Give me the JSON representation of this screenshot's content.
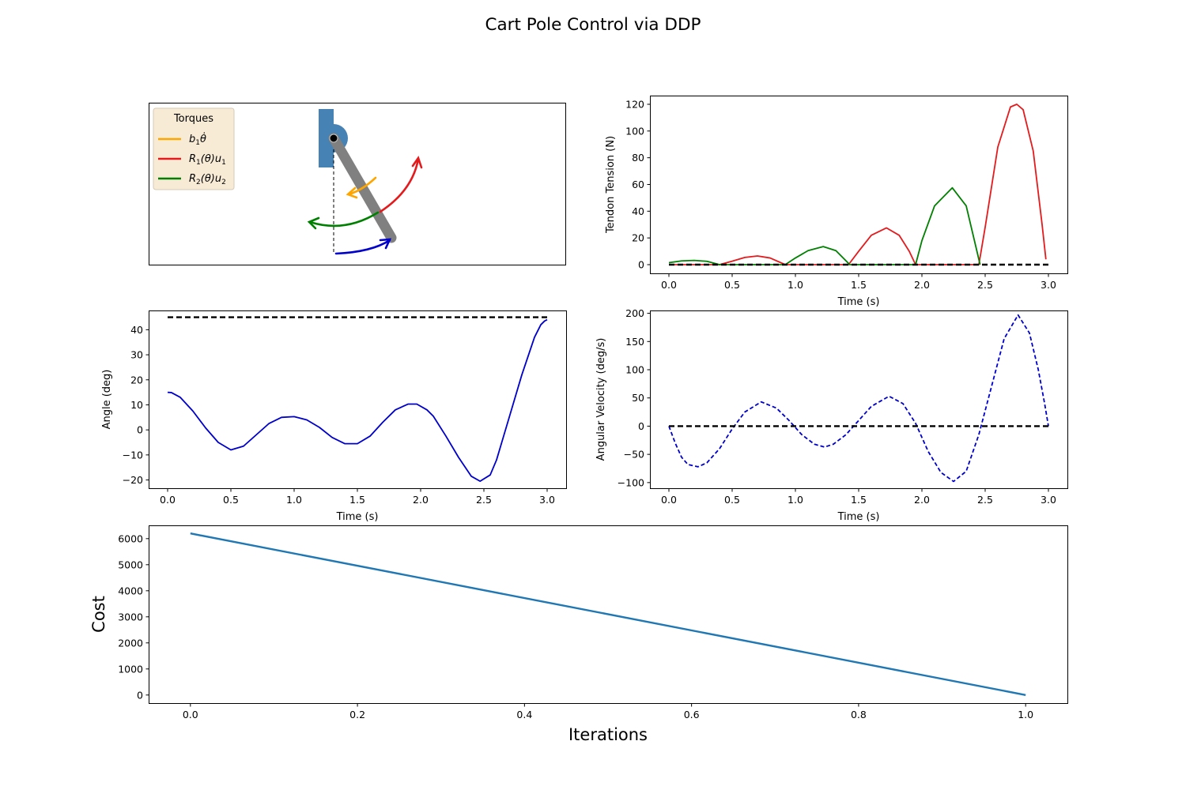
{
  "figure": {
    "title": "Cart Pole Control via DDP"
  },
  "colors": {
    "damping_torque": "#ffa500",
    "tendon_1": "#e41a1c",
    "tendon_2": "#008000",
    "angle": "#0000cd",
    "reference": "#000000",
    "cost": "#1f77b4",
    "pole": "#808080",
    "pendulum_base": "#4682b4",
    "legend_bg": "#f7ebd6",
    "legend_border": "#d6cbb8"
  },
  "animation": {
    "legend_title": "Torques",
    "legend_entries": [
      {
        "label_base": "b",
        "label_sub": "1",
        "label_rest": "θ̇",
        "color_key": "damping_torque"
      },
      {
        "label_base": "R",
        "label_sub": "1",
        "label_rest": "(θ)u",
        "label_sub2": "1",
        "color_key": "tendon_1"
      },
      {
        "label_base": "R",
        "label_sub": "2",
        "label_rest": "(θ)u",
        "label_sub2": "2",
        "color_key": "tendon_2"
      }
    ]
  },
  "chart_data": [
    {
      "id": "tension",
      "type": "line",
      "xlabel": "Time (s)",
      "ylabel": "Tendon Tension (N)",
      "xlim": [
        -0.15,
        3.15
      ],
      "ylim": [
        -6.5,
        126.5
      ],
      "xticks": [
        0.0,
        0.5,
        1.0,
        1.5,
        2.0,
        2.5,
        3.0
      ],
      "xtick_labels": [
        "0.0",
        "0.5",
        "1.0",
        "1.5",
        "2.0",
        "2.5",
        "3.0"
      ],
      "yticks": [
        0,
        20,
        40,
        60,
        80,
        100,
        120
      ],
      "ytick_labels": [
        "0",
        "20",
        "40",
        "60",
        "80",
        "100",
        "120"
      ],
      "series": [
        {
          "color_key": "tendon_1",
          "style": "solid",
          "x": [
            0.0,
            0.4,
            0.5,
            0.6,
            0.7,
            0.8,
            0.92,
            1.42,
            1.5,
            1.6,
            1.72,
            1.82,
            1.9,
            1.95,
            2.45,
            2.5,
            2.6,
            2.7,
            2.75,
            2.8,
            2.88,
            2.95,
            2.98
          ],
          "y": [
            0,
            0,
            2.6,
            5.4,
            6.5,
            5.0,
            0,
            0,
            10,
            22,
            27.5,
            22,
            10,
            0,
            0,
            28,
            88,
            118,
            120,
            116,
            85,
            30,
            4
          ]
        },
        {
          "color_key": "tendon_2",
          "style": "solid",
          "x": [
            0.0,
            0.1,
            0.2,
            0.3,
            0.4,
            0.92,
            1.0,
            1.1,
            1.22,
            1.32,
            1.43,
            1.95,
            2.0,
            2.1,
            2.24,
            2.35,
            2.46
          ],
          "y": [
            1.5,
            2.8,
            3.2,
            2.5,
            0,
            0,
            5,
            10.5,
            13.5,
            10.5,
            0,
            0,
            18,
            44,
            57.5,
            44,
            0
          ]
        },
        {
          "color_key": "reference",
          "style": "dashed",
          "x": [
            0.0,
            3.0
          ],
          "y": [
            0,
            0
          ]
        }
      ]
    },
    {
      "id": "angle",
      "type": "line",
      "xlabel": "Time (s)",
      "ylabel": "Angle (deg)",
      "xlim": [
        -0.15,
        3.15
      ],
      "ylim": [
        -23.3,
        47.7
      ],
      "xticks": [
        0.0,
        0.5,
        1.0,
        1.5,
        2.0,
        2.5,
        3.0
      ],
      "xtick_labels": [
        "0.0",
        "0.5",
        "1.0",
        "1.5",
        "2.0",
        "2.5",
        "3.0"
      ],
      "yticks": [
        -20,
        -10,
        0,
        10,
        20,
        30,
        40
      ],
      "ytick_labels": [
        "−20",
        "−10",
        "0",
        "10",
        "20",
        "30",
        "40"
      ],
      "series": [
        {
          "color_key": "angle",
          "style": "solid",
          "x": [
            0.0,
            0.03,
            0.1,
            0.2,
            0.3,
            0.4,
            0.5,
            0.6,
            0.7,
            0.8,
            0.9,
            1.0,
            1.1,
            1.2,
            1.3,
            1.4,
            1.5,
            1.6,
            1.7,
            1.8,
            1.9,
            1.97,
            2.05,
            2.1,
            2.2,
            2.3,
            2.4,
            2.47,
            2.55,
            2.6,
            2.7,
            2.8,
            2.9,
            2.95,
            2.98,
            3.0
          ],
          "y": [
            15,
            14.9,
            13,
            7.5,
            0.8,
            -5,
            -8,
            -6.5,
            -2,
            2.5,
            5,
            5.3,
            4,
            1,
            -3,
            -5.5,
            -5.5,
            -2.5,
            3,
            8,
            10.3,
            10.3,
            8,
            5.5,
            -2.5,
            -11,
            -18.5,
            -20.5,
            -18,
            -12,
            5,
            22,
            37,
            42,
            43.5,
            44
          ]
        },
        {
          "color_key": "reference",
          "style": "dashed",
          "x": [
            0.0,
            3.0
          ],
          "y": [
            45,
            45
          ]
        }
      ]
    },
    {
      "id": "angular_velocity",
      "type": "line",
      "xlabel": "Time (s)",
      "ylabel": "Angular Velocity (deg/s)",
      "xlim": [
        -0.15,
        3.15
      ],
      "ylim": [
        -110,
        205
      ],
      "xticks": [
        0.0,
        0.5,
        1.0,
        1.5,
        2.0,
        2.5,
        3.0
      ],
      "xtick_labels": [
        "0.0",
        "0.5",
        "1.0",
        "1.5",
        "2.0",
        "2.5",
        "3.0"
      ],
      "yticks": [
        -100,
        -50,
        0,
        50,
        100,
        150,
        200
      ],
      "ytick_labels": [
        "−100",
        "−50",
        "0",
        "50",
        "100",
        "150",
        "200"
      ],
      "series": [
        {
          "color_key": "angle",
          "style": "dashed",
          "x": [
            0.0,
            0.05,
            0.1,
            0.15,
            0.23,
            0.3,
            0.4,
            0.5,
            0.6,
            0.73,
            0.85,
            0.95,
            1.05,
            1.15,
            1.23,
            1.3,
            1.4,
            1.5,
            1.6,
            1.74,
            1.85,
            1.95,
            2.05,
            2.15,
            2.25,
            2.35,
            2.45,
            2.55,
            2.65,
            2.76,
            2.85,
            2.92,
            2.97,
            3.0
          ],
          "y": [
            0,
            -30,
            -55,
            -68,
            -72,
            -65,
            -40,
            -5,
            25,
            43,
            32,
            10,
            -15,
            -32,
            -37,
            -32,
            -15,
            10,
            35,
            53,
            40,
            5,
            -45,
            -82,
            -98,
            -80,
            -15,
            70,
            155,
            197,
            165,
            100,
            40,
            0
          ]
        },
        {
          "color_key": "reference",
          "style": "dashed",
          "x": [
            0.0,
            3.0
          ],
          "y": [
            0,
            0
          ]
        }
      ]
    },
    {
      "id": "cost",
      "type": "line",
      "xlabel": "Iterations",
      "ylabel": "Cost",
      "xlim": [
        -0.05,
        1.05
      ],
      "ylim": [
        -310,
        6510
      ],
      "xticks": [
        0.0,
        0.2,
        0.4,
        0.6,
        0.8,
        1.0
      ],
      "xtick_labels": [
        "0.0",
        "0.2",
        "0.4",
        "0.6",
        "0.8",
        "1.0"
      ],
      "yticks": [
        0,
        1000,
        2000,
        3000,
        4000,
        5000,
        6000
      ],
      "ytick_labels": [
        "0",
        "1000",
        "2000",
        "3000",
        "4000",
        "5000",
        "6000"
      ],
      "series": [
        {
          "color_key": "cost",
          "style": "solid",
          "x": [
            0.0,
            1.0
          ],
          "y": [
            6200,
            0
          ]
        }
      ]
    }
  ]
}
